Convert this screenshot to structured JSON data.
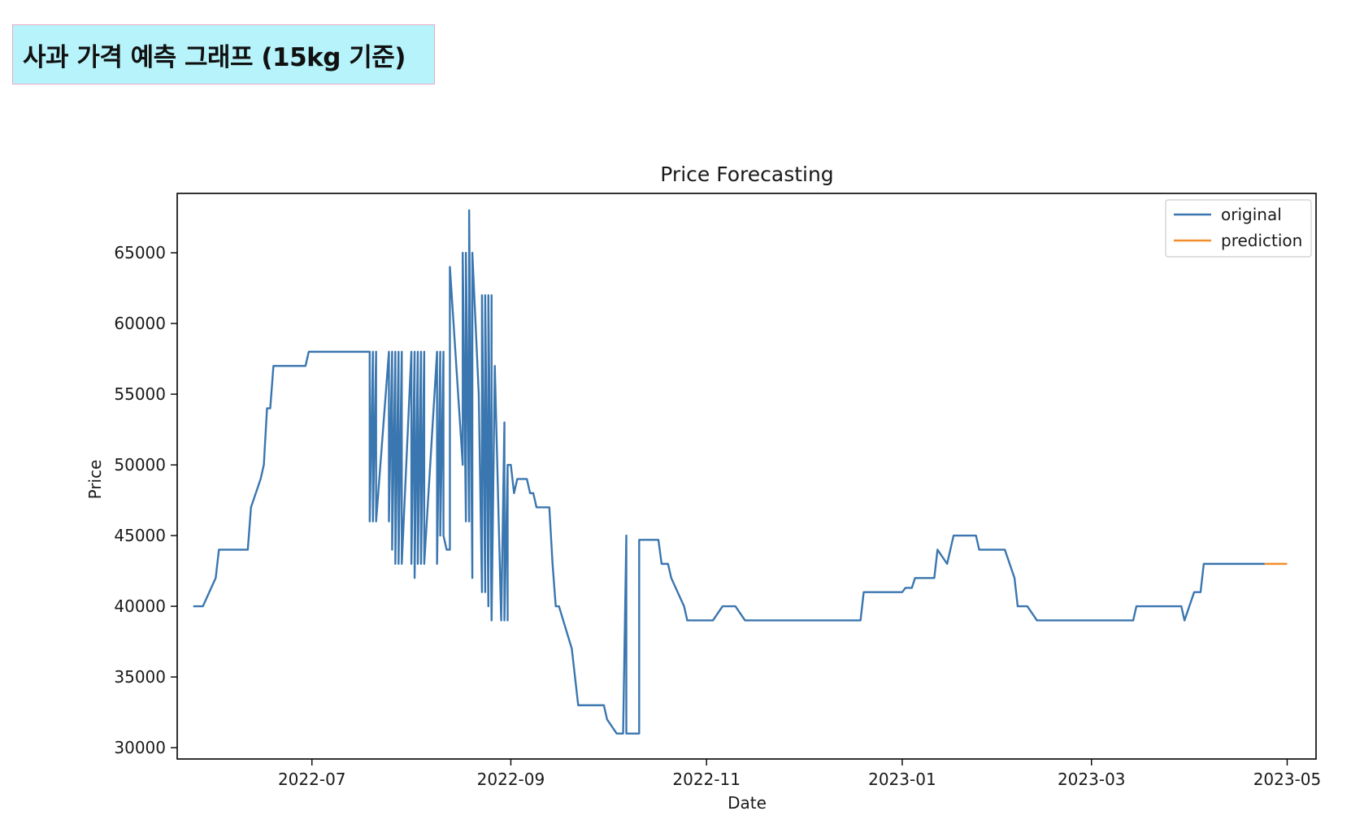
{
  "header": {
    "title": "사과 가격 예측 그래프 (15kg 기준)"
  },
  "chart_data": {
    "type": "line",
    "title": "Price Forecasting",
    "xlabel": "Date",
    "ylabel": "Price",
    "ylim": [
      29200,
      69200
    ],
    "y_ticks": [
      30000,
      35000,
      40000,
      45000,
      50000,
      55000,
      60000,
      65000
    ],
    "x_range": [
      "2022-05-20",
      "2023-05-10"
    ],
    "x_ticks": [
      "2022-07-01",
      "2022-09-01",
      "2022-11-01",
      "2023-01-01",
      "2023-03-01",
      "2023-05-01"
    ],
    "x_tick_labels": [
      "2022-07",
      "2022-09",
      "2022-11",
      "2023-01",
      "2023-03",
      "2023-05"
    ],
    "grid": false,
    "legend": "top-right",
    "colors": {
      "original": "#3a76af",
      "prediction": "#f28e2b",
      "frame": "#000000",
      "header_bg": "#b6f3fb"
    },
    "series": [
      {
        "name": "original",
        "points": [
          [
            "2022-05-25",
            40000
          ],
          [
            "2022-05-28",
            40000
          ],
          [
            "2022-06-01",
            42000
          ],
          [
            "2022-06-02",
            44000
          ],
          [
            "2022-06-11",
            44000
          ],
          [
            "2022-06-12",
            47000
          ],
          [
            "2022-06-15",
            49000
          ],
          [
            "2022-06-16",
            50000
          ],
          [
            "2022-06-17",
            54000
          ],
          [
            "2022-06-18",
            54000
          ],
          [
            "2022-06-19",
            57000
          ],
          [
            "2022-06-29",
            57000
          ],
          [
            "2022-06-30",
            58000
          ],
          [
            "2022-07-19",
            58000
          ],
          [
            "2022-07-19",
            46000
          ],
          [
            "2022-07-20",
            58000
          ],
          [
            "2022-07-20",
            46000
          ],
          [
            "2022-07-21",
            58000
          ],
          [
            "2022-07-21",
            46000
          ],
          [
            "2022-07-25",
            58000
          ],
          [
            "2022-07-25",
            46000
          ],
          [
            "2022-07-26",
            58000
          ],
          [
            "2022-07-26",
            44000
          ],
          [
            "2022-07-27",
            58000
          ],
          [
            "2022-07-27",
            43000
          ],
          [
            "2022-07-28",
            58000
          ],
          [
            "2022-07-28",
            43000
          ],
          [
            "2022-07-29",
            58000
          ],
          [
            "2022-07-29",
            43000
          ],
          [
            "2022-08-01",
            58000
          ],
          [
            "2022-08-01",
            43000
          ],
          [
            "2022-08-02",
            58000
          ],
          [
            "2022-08-02",
            42000
          ],
          [
            "2022-08-03",
            58000
          ],
          [
            "2022-08-03",
            43000
          ],
          [
            "2022-08-04",
            58000
          ],
          [
            "2022-08-04",
            43000
          ],
          [
            "2022-08-05",
            58000
          ],
          [
            "2022-08-05",
            43000
          ],
          [
            "2022-08-09",
            58000
          ],
          [
            "2022-08-09",
            43000
          ],
          [
            "2022-08-10",
            58000
          ],
          [
            "2022-08-10",
            45000
          ],
          [
            "2022-08-11",
            58000
          ],
          [
            "2022-08-11",
            45000
          ],
          [
            "2022-08-12",
            44000
          ],
          [
            "2022-08-13",
            44000
          ],
          [
            "2022-08-13",
            64000
          ],
          [
            "2022-08-17",
            50000
          ],
          [
            "2022-08-17",
            65000
          ],
          [
            "2022-08-18",
            46000
          ],
          [
            "2022-08-18",
            65000
          ],
          [
            "2022-08-19",
            46000
          ],
          [
            "2022-08-19",
            68000
          ],
          [
            "2022-08-20",
            42000
          ],
          [
            "2022-08-20",
            65000
          ],
          [
            "2022-08-22",
            55000
          ],
          [
            "2022-08-23",
            41000
          ],
          [
            "2022-08-23",
            62000
          ],
          [
            "2022-08-24",
            41000
          ],
          [
            "2022-08-24",
            62000
          ],
          [
            "2022-08-25",
            40000
          ],
          [
            "2022-08-25",
            62000
          ],
          [
            "2022-08-26",
            39000
          ],
          [
            "2022-08-26",
            62000
          ],
          [
            "2022-08-26",
            39000
          ],
          [
            "2022-08-27",
            57000
          ],
          [
            "2022-08-29",
            39000
          ],
          [
            "2022-08-30",
            53000
          ],
          [
            "2022-08-30",
            39000
          ],
          [
            "2022-08-31",
            50000
          ],
          [
            "2022-08-31",
            39000
          ],
          [
            "2022-08-31",
            50000
          ],
          [
            "2022-09-01",
            50000
          ],
          [
            "2022-09-02",
            48000
          ],
          [
            "2022-09-03",
            49000
          ],
          [
            "2022-09-06",
            49000
          ],
          [
            "2022-09-07",
            48000
          ],
          [
            "2022-09-08",
            48000
          ],
          [
            "2022-09-09",
            47000
          ],
          [
            "2022-09-13",
            47000
          ],
          [
            "2022-09-14",
            43000
          ],
          [
            "2022-09-15",
            40000
          ],
          [
            "2022-09-16",
            40000
          ],
          [
            "2022-09-20",
            37000
          ],
          [
            "2022-09-22",
            33000
          ],
          [
            "2022-09-30",
            33000
          ],
          [
            "2022-10-01",
            32000
          ],
          [
            "2022-10-04",
            31000
          ],
          [
            "2022-10-06",
            31000
          ],
          [
            "2022-10-07",
            45000
          ],
          [
            "2022-10-07",
            31000
          ],
          [
            "2022-10-11",
            31000
          ],
          [
            "2022-10-11",
            44700
          ],
          [
            "2022-10-17",
            44700
          ],
          [
            "2022-10-18",
            43000
          ],
          [
            "2022-10-20",
            43000
          ],
          [
            "2022-10-21",
            42000
          ],
          [
            "2022-10-25",
            40000
          ],
          [
            "2022-10-26",
            39000
          ],
          [
            "2022-11-03",
            39000
          ],
          [
            "2022-11-06",
            40000
          ],
          [
            "2022-11-10",
            40000
          ],
          [
            "2022-11-13",
            39000
          ],
          [
            "2022-12-19",
            39000
          ],
          [
            "2022-12-20",
            41000
          ],
          [
            "2023-01-01",
            41000
          ],
          [
            "2023-01-02",
            41300
          ],
          [
            "2023-01-04",
            41300
          ],
          [
            "2023-01-05",
            42000
          ],
          [
            "2023-01-11",
            42000
          ],
          [
            "2023-01-12",
            44000
          ],
          [
            "2023-01-15",
            43000
          ],
          [
            "2023-01-17",
            45000
          ],
          [
            "2023-01-24",
            45000
          ],
          [
            "2023-01-25",
            44000
          ],
          [
            "2023-02-02",
            44000
          ],
          [
            "2023-02-05",
            42000
          ],
          [
            "2023-02-06",
            40000
          ],
          [
            "2023-02-09",
            40000
          ],
          [
            "2023-02-12",
            39000
          ],
          [
            "2023-03-14",
            39000
          ],
          [
            "2023-03-15",
            40000
          ],
          [
            "2023-03-29",
            40000
          ],
          [
            "2023-03-30",
            39000
          ],
          [
            "2023-04-02",
            41000
          ],
          [
            "2023-04-04",
            41000
          ],
          [
            "2023-04-05",
            43000
          ],
          [
            "2023-04-24",
            43000
          ]
        ]
      },
      {
        "name": "prediction",
        "points": [
          [
            "2023-04-24",
            43000
          ],
          [
            "2023-05-01",
            43000
          ]
        ]
      }
    ]
  }
}
